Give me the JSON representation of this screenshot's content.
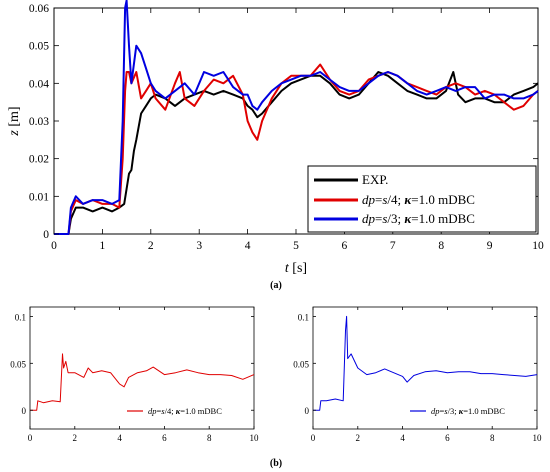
{
  "chart_data": [
    {
      "type": "line",
      "panel_label": "(a)",
      "xlabel": "t [s]",
      "ylabel": "z [m]",
      "xlim": [
        0,
        10
      ],
      "ylim": [
        0,
        0.06
      ],
      "x_ticks": [
        0,
        1,
        2,
        3,
        4,
        5,
        6,
        7,
        8,
        9,
        10
      ],
      "y_ticks": [
        0,
        0.01,
        0.02,
        0.03,
        0.04,
        0.05,
        0.06
      ],
      "x_tick_labels": [
        "0",
        "1",
        "2",
        "3",
        "4",
        "5",
        "6",
        "7",
        "8",
        "9",
        "10"
      ],
      "y_tick_labels": [
        "0",
        "0.01",
        "0.02",
        "0.03",
        "0.04",
        "0.05",
        "0.06"
      ],
      "grid": false,
      "legend_position": "bottom-right",
      "series": [
        {
          "name": "EXP.",
          "color": "#000000",
          "points": [
            [
              0,
              0
            ],
            [
              0.3,
              0
            ],
            [
              0.35,
              0.004
            ],
            [
              0.45,
              0.007
            ],
            [
              0.6,
              0.007
            ],
            [
              0.8,
              0.006
            ],
            [
              1.0,
              0.007
            ],
            [
              1.2,
              0.006
            ],
            [
              1.35,
              0.007
            ],
            [
              1.45,
              0.008
            ],
            [
              1.5,
              0.012
            ],
            [
              1.55,
              0.016
            ],
            [
              1.6,
              0.017
            ],
            [
              1.65,
              0.022
            ],
            [
              1.7,
              0.025
            ],
            [
              1.8,
              0.032
            ],
            [
              1.9,
              0.034
            ],
            [
              2.0,
              0.036
            ],
            [
              2.1,
              0.037
            ],
            [
              2.3,
              0.036
            ],
            [
              2.5,
              0.034
            ],
            [
              2.7,
              0.036
            ],
            [
              2.9,
              0.037
            ],
            [
              3.1,
              0.038
            ],
            [
              3.3,
              0.037
            ],
            [
              3.5,
              0.038
            ],
            [
              3.7,
              0.037
            ],
            [
              3.9,
              0.036
            ],
            [
              4.0,
              0.034
            ],
            [
              4.1,
              0.033
            ],
            [
              4.2,
              0.031
            ],
            [
              4.3,
              0.032
            ],
            [
              4.5,
              0.035
            ],
            [
              4.7,
              0.038
            ],
            [
              4.9,
              0.04
            ],
            [
              5.1,
              0.041
            ],
            [
              5.3,
              0.042
            ],
            [
              5.5,
              0.042
            ],
            [
              5.7,
              0.04
            ],
            [
              5.9,
              0.037
            ],
            [
              6.1,
              0.036
            ],
            [
              6.3,
              0.037
            ],
            [
              6.5,
              0.04
            ],
            [
              6.7,
              0.043
            ],
            [
              6.9,
              0.042
            ],
            [
              7.1,
              0.04
            ],
            [
              7.3,
              0.038
            ],
            [
              7.5,
              0.037
            ],
            [
              7.7,
              0.036
            ],
            [
              7.9,
              0.036
            ],
            [
              8.1,
              0.038
            ],
            [
              8.25,
              0.043
            ],
            [
              8.35,
              0.037
            ],
            [
              8.5,
              0.035
            ],
            [
              8.7,
              0.036
            ],
            [
              8.9,
              0.036
            ],
            [
              9.1,
              0.035
            ],
            [
              9.3,
              0.035
            ],
            [
              9.5,
              0.037
            ],
            [
              9.7,
              0.038
            ],
            [
              9.9,
              0.039
            ],
            [
              10,
              0.04
            ]
          ]
        },
        {
          "name": "dp=s/4; κ=1.0 mDBC",
          "color": "#e00000",
          "points": [
            [
              0,
              0
            ],
            [
              0.3,
              0
            ],
            [
              0.35,
              0.006
            ],
            [
              0.45,
              0.009
            ],
            [
              0.6,
              0.008
            ],
            [
              0.8,
              0.009
            ],
            [
              1.0,
              0.008
            ],
            [
              1.2,
              0.008
            ],
            [
              1.35,
              0.007
            ],
            [
              1.42,
              0.02
            ],
            [
              1.47,
              0.038
            ],
            [
              1.5,
              0.043
            ],
            [
              1.55,
              0.043
            ],
            [
              1.6,
              0.04
            ],
            [
              1.7,
              0.043
            ],
            [
              1.8,
              0.036
            ],
            [
              1.9,
              0.038
            ],
            [
              2.0,
              0.04
            ],
            [
              2.1,
              0.036
            ],
            [
              2.3,
              0.033
            ],
            [
              2.5,
              0.04
            ],
            [
              2.6,
              0.043
            ],
            [
              2.7,
              0.036
            ],
            [
              2.9,
              0.034
            ],
            [
              3.1,
              0.038
            ],
            [
              3.3,
              0.041
            ],
            [
              3.5,
              0.04
            ],
            [
              3.7,
              0.042
            ],
            [
              3.9,
              0.037
            ],
            [
              4.0,
              0.03
            ],
            [
              4.1,
              0.027
            ],
            [
              4.2,
              0.025
            ],
            [
              4.3,
              0.03
            ],
            [
              4.5,
              0.036
            ],
            [
              4.7,
              0.04
            ],
            [
              4.9,
              0.042
            ],
            [
              5.1,
              0.042
            ],
            [
              5.3,
              0.042
            ],
            [
              5.5,
              0.045
            ],
            [
              5.7,
              0.041
            ],
            [
              5.9,
              0.038
            ],
            [
              6.1,
              0.037
            ],
            [
              6.3,
              0.038
            ],
            [
              6.5,
              0.041
            ],
            [
              6.7,
              0.042
            ],
            [
              6.9,
              0.043
            ],
            [
              7.1,
              0.042
            ],
            [
              7.3,
              0.04
            ],
            [
              7.5,
              0.039
            ],
            [
              7.7,
              0.038
            ],
            [
              7.9,
              0.037
            ],
            [
              8.1,
              0.039
            ],
            [
              8.3,
              0.04
            ],
            [
              8.5,
              0.039
            ],
            [
              8.7,
              0.037
            ],
            [
              8.9,
              0.038
            ],
            [
              9.1,
              0.037
            ],
            [
              9.3,
              0.035
            ],
            [
              9.5,
              0.033
            ],
            [
              9.7,
              0.034
            ],
            [
              9.9,
              0.037
            ],
            [
              10,
              0.038
            ]
          ]
        },
        {
          "name": "dp=s/3; κ=1.0 mDBC",
          "color": "#0000e0",
          "points": [
            [
              0,
              0
            ],
            [
              0.3,
              0
            ],
            [
              0.35,
              0.007
            ],
            [
              0.45,
              0.01
            ],
            [
              0.6,
              0.008
            ],
            [
              0.8,
              0.009
            ],
            [
              1.0,
              0.009
            ],
            [
              1.2,
              0.008
            ],
            [
              1.35,
              0.009
            ],
            [
              1.42,
              0.03
            ],
            [
              1.47,
              0.06
            ],
            [
              1.5,
              0.062
            ],
            [
              1.55,
              0.05
            ],
            [
              1.6,
              0.04
            ],
            [
              1.7,
              0.05
            ],
            [
              1.8,
              0.048
            ],
            [
              1.9,
              0.044
            ],
            [
              2.0,
              0.04
            ],
            [
              2.1,
              0.038
            ],
            [
              2.3,
              0.036
            ],
            [
              2.5,
              0.038
            ],
            [
              2.7,
              0.04
            ],
            [
              2.9,
              0.037
            ],
            [
              3.1,
              0.043
            ],
            [
              3.3,
              0.042
            ],
            [
              3.5,
              0.043
            ],
            [
              3.7,
              0.039
            ],
            [
              3.9,
              0.037
            ],
            [
              4.0,
              0.037
            ],
            [
              4.1,
              0.034
            ],
            [
              4.2,
              0.033
            ],
            [
              4.3,
              0.035
            ],
            [
              4.5,
              0.038
            ],
            [
              4.7,
              0.04
            ],
            [
              4.9,
              0.041
            ],
            [
              5.1,
              0.042
            ],
            [
              5.3,
              0.042
            ],
            [
              5.5,
              0.043
            ],
            [
              5.7,
              0.041
            ],
            [
              5.9,
              0.039
            ],
            [
              6.1,
              0.038
            ],
            [
              6.3,
              0.038
            ],
            [
              6.5,
              0.04
            ],
            [
              6.7,
              0.042
            ],
            [
              6.9,
              0.043
            ],
            [
              7.1,
              0.042
            ],
            [
              7.3,
              0.04
            ],
            [
              7.5,
              0.038
            ],
            [
              7.7,
              0.037
            ],
            [
              7.9,
              0.038
            ],
            [
              8.1,
              0.039
            ],
            [
              8.3,
              0.038
            ],
            [
              8.5,
              0.039
            ],
            [
              8.7,
              0.039
            ],
            [
              8.9,
              0.036
            ],
            [
              9.1,
              0.037
            ],
            [
              9.3,
              0.037
            ],
            [
              9.5,
              0.036
            ],
            [
              9.7,
              0.036
            ],
            [
              9.9,
              0.037
            ],
            [
              10,
              0.038
            ]
          ]
        }
      ]
    },
    {
      "type": "line",
      "panel_label": "(b)",
      "xlim": [
        0,
        10
      ],
      "ylim": [
        -0.02,
        0.11
      ],
      "x_ticks": [
        0,
        2,
        4,
        6,
        8,
        10
      ],
      "y_ticks": [
        0,
        0.05,
        0.1
      ],
      "x_tick_labels": [
        "0",
        "2",
        "4",
        "6",
        "8",
        "10"
      ],
      "y_tick_labels": [
        "0",
        "0.05",
        "0.1"
      ],
      "legend_position": "bottom-right",
      "series": [
        {
          "name": "dp=s/4; κ=1.0 mDBC",
          "color": "#e00000",
          "points": [
            [
              0,
              0
            ],
            [
              0.3,
              0
            ],
            [
              0.35,
              0.01
            ],
            [
              0.6,
              0.008
            ],
            [
              1.0,
              0.01
            ],
            [
              1.35,
              0.009
            ],
            [
              1.45,
              0.06
            ],
            [
              1.5,
              0.045
            ],
            [
              1.6,
              0.052
            ],
            [
              1.7,
              0.04
            ],
            [
              2.0,
              0.04
            ],
            [
              2.4,
              0.035
            ],
            [
              2.6,
              0.045
            ],
            [
              2.8,
              0.04
            ],
            [
              3.2,
              0.042
            ],
            [
              3.6,
              0.04
            ],
            [
              4.0,
              0.028
            ],
            [
              4.2,
              0.025
            ],
            [
              4.4,
              0.035
            ],
            [
              4.8,
              0.04
            ],
            [
              5.2,
              0.042
            ],
            [
              5.5,
              0.046
            ],
            [
              6.0,
              0.038
            ],
            [
              6.5,
              0.04
            ],
            [
              7.0,
              0.043
            ],
            [
              7.5,
              0.04
            ],
            [
              8.0,
              0.038
            ],
            [
              8.5,
              0.038
            ],
            [
              9.0,
              0.037
            ],
            [
              9.5,
              0.033
            ],
            [
              10,
              0.038
            ]
          ]
        },
        {
          "name": "dp=s/3; κ=1.0 mDBC",
          "color": "#0000e0",
          "points": [
            [
              0,
              0
            ],
            [
              0.3,
              0
            ],
            [
              0.35,
              0.01
            ],
            [
              0.6,
              0.01
            ],
            [
              1.0,
              0.012
            ],
            [
              1.35,
              0.01
            ],
            [
              1.45,
              0.085
            ],
            [
              1.5,
              0.1
            ],
            [
              1.55,
              0.055
            ],
            [
              1.7,
              0.06
            ],
            [
              2.0,
              0.045
            ],
            [
              2.4,
              0.038
            ],
            [
              2.8,
              0.04
            ],
            [
              3.2,
              0.044
            ],
            [
              3.6,
              0.04
            ],
            [
              4.0,
              0.036
            ],
            [
              4.2,
              0.03
            ],
            [
              4.5,
              0.037
            ],
            [
              5.0,
              0.041
            ],
            [
              5.5,
              0.042
            ],
            [
              6.0,
              0.04
            ],
            [
              6.5,
              0.041
            ],
            [
              7.0,
              0.041
            ],
            [
              7.5,
              0.039
            ],
            [
              8.0,
              0.039
            ],
            [
              8.5,
              0.038
            ],
            [
              9.0,
              0.037
            ],
            [
              9.5,
              0.036
            ],
            [
              10,
              0.038
            ]
          ]
        }
      ]
    }
  ],
  "legend_main": {
    "exp": "EXP.",
    "s4": {
      "dp": "dp",
      "eq": "=",
      "s": "s",
      "rest1": "/4; ",
      "kappa": "κ",
      "rest2": "=1.0 mDBC"
    },
    "s3": {
      "dp": "dp",
      "eq": "=",
      "s": "s",
      "rest1": "/3; ",
      "kappa": "κ",
      "rest2": "=1.0 mDBC"
    }
  }
}
